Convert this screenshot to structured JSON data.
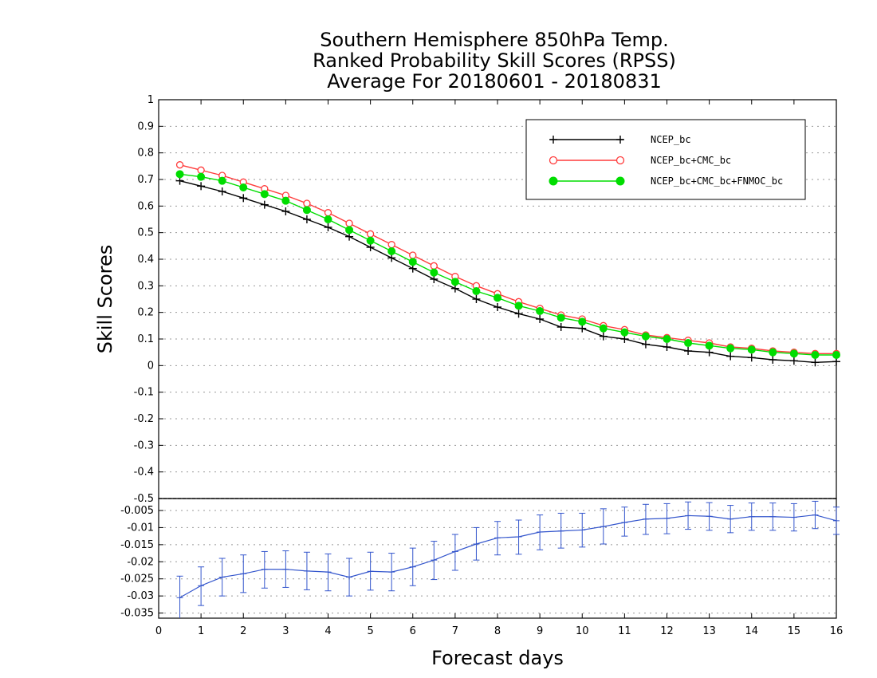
{
  "chart_data": [
    {
      "type": "line",
      "title_lines": [
        "Southern Hemisphere 850hPa Temp.",
        "Ranked Probability Skill Scores (RPSS)",
        "Average For 20180601 - 20180831"
      ],
      "ylabel": "Skill Scores",
      "xlim": [
        0,
        16
      ],
      "ylim": [
        -0.5,
        1.0
      ],
      "yticks": [
        "1",
        "0.9",
        "0.8",
        "0.7",
        "0.6",
        "0.5",
        "0.4",
        "0.3",
        "0.2",
        "0.1",
        "0",
        "-0.1",
        "-0.2",
        "-0.3",
        "-0.4"
      ],
      "grid": true,
      "legend_position": "top-right",
      "x": [
        0.5,
        1,
        1.5,
        2,
        2.5,
        3,
        3.5,
        4,
        4.5,
        5,
        5.5,
        6,
        6.5,
        7,
        7.5,
        8,
        8.5,
        9,
        9.5,
        10,
        10.5,
        11,
        11.5,
        12,
        12.5,
        13,
        13.5,
        14,
        14.5,
        15,
        15.5,
        16
      ],
      "series": [
        {
          "name": "NCEP_bc",
          "color": "#000000",
          "marker": "plus",
          "values": [
            0.695,
            0.675,
            0.655,
            0.63,
            0.605,
            0.58,
            0.55,
            0.52,
            0.485,
            0.445,
            0.405,
            0.365,
            0.325,
            0.29,
            0.25,
            0.22,
            0.195,
            0.175,
            0.145,
            0.14,
            0.11,
            0.1,
            0.08,
            0.07,
            0.055,
            0.05,
            0.035,
            0.03,
            0.022,
            0.018,
            0.012,
            0.015
          ]
        },
        {
          "name": "NCEP_bc+CMC_bc",
          "color": "#ff3b3b",
          "marker": "open-circle",
          "values": [
            0.755,
            0.735,
            0.715,
            0.69,
            0.665,
            0.64,
            0.61,
            0.575,
            0.535,
            0.495,
            0.455,
            0.415,
            0.375,
            0.335,
            0.3,
            0.27,
            0.24,
            0.215,
            0.19,
            0.175,
            0.15,
            0.135,
            0.115,
            0.105,
            0.095,
            0.085,
            0.07,
            0.065,
            0.055,
            0.05,
            0.045,
            0.045
          ]
        },
        {
          "name": "NCEP_bc+CMC_bc+FNMOC_bc",
          "color": "#00dd00",
          "marker": "filled-circle",
          "values": [
            0.72,
            0.71,
            0.695,
            0.67,
            0.645,
            0.62,
            0.585,
            0.55,
            0.51,
            0.47,
            0.43,
            0.39,
            0.35,
            0.315,
            0.28,
            0.255,
            0.225,
            0.205,
            0.18,
            0.165,
            0.14,
            0.125,
            0.11,
            0.1,
            0.085,
            0.075,
            0.065,
            0.06,
            0.05,
            0.045,
            0.04,
            0.04
          ]
        }
      ]
    },
    {
      "type": "line",
      "xlabel": "Forecast days",
      "xlim": [
        0,
        16
      ],
      "ylim": [
        -0.0365,
        -0.0015
      ],
      "xticks": [
        "0",
        "1",
        "2",
        "3",
        "4",
        "5",
        "6",
        "7",
        "8",
        "9",
        "10",
        "11",
        "12",
        "13",
        "14",
        "15",
        "16"
      ],
      "yticks": [
        "-0.005",
        "-0.01",
        "-0.015",
        "-0.02",
        "-0.025",
        "-0.03",
        "-0.035"
      ],
      "grid": true,
      "series": [
        {
          "color": "#3355cc",
          "marker": "error-bar",
          "x": [
            0.5,
            1,
            1.5,
            2,
            2.5,
            3,
            3.5,
            4,
            4.5,
            5,
            5.5,
            6,
            6.5,
            7,
            7.5,
            8,
            8.5,
            9,
            9.5,
            10,
            10.5,
            11,
            11.5,
            12,
            12.5,
            13,
            13.5,
            14,
            14.5,
            15,
            15.5,
            16
          ],
          "values": [
            -0.0305,
            -0.027,
            -0.0245,
            -0.0235,
            -0.0222,
            -0.0222,
            -0.0227,
            -0.023,
            -0.0245,
            -0.0228,
            -0.023,
            -0.0215,
            -0.0195,
            -0.017,
            -0.0148,
            -0.013,
            -0.0127,
            -0.0113,
            -0.011,
            -0.0107,
            -0.0097,
            -0.0085,
            -0.0075,
            -0.0073,
            -0.0065,
            -0.0067,
            -0.0075,
            -0.0068,
            -0.0068,
            -0.007,
            -0.0063,
            -0.008
          ],
          "err_low": [
            -0.037,
            -0.0328,
            -0.03,
            -0.029,
            -0.0277,
            -0.0275,
            -0.0282,
            -0.0285,
            -0.03,
            -0.0283,
            -0.0285,
            -0.027,
            -0.0252,
            -0.0225,
            -0.0195,
            -0.018,
            -0.0178,
            -0.0165,
            -0.016,
            -0.0157,
            -0.0148,
            -0.0125,
            -0.012,
            -0.0118,
            -0.0105,
            -0.0108,
            -0.0115,
            -0.0108,
            -0.0108,
            -0.011,
            -0.0103,
            -0.012
          ],
          "err_high": [
            -0.0242,
            -0.0215,
            -0.019,
            -0.018,
            -0.017,
            -0.0168,
            -0.0172,
            -0.0177,
            -0.019,
            -0.0172,
            -0.0175,
            -0.016,
            -0.014,
            -0.012,
            -0.01,
            -0.0082,
            -0.0078,
            -0.0063,
            -0.0058,
            -0.0058,
            -0.0045,
            -0.004,
            -0.0032,
            -0.003,
            -0.0025,
            -0.0027,
            -0.0035,
            -0.0028,
            -0.0028,
            -0.003,
            -0.0023,
            -0.004
          ]
        }
      ]
    }
  ]
}
